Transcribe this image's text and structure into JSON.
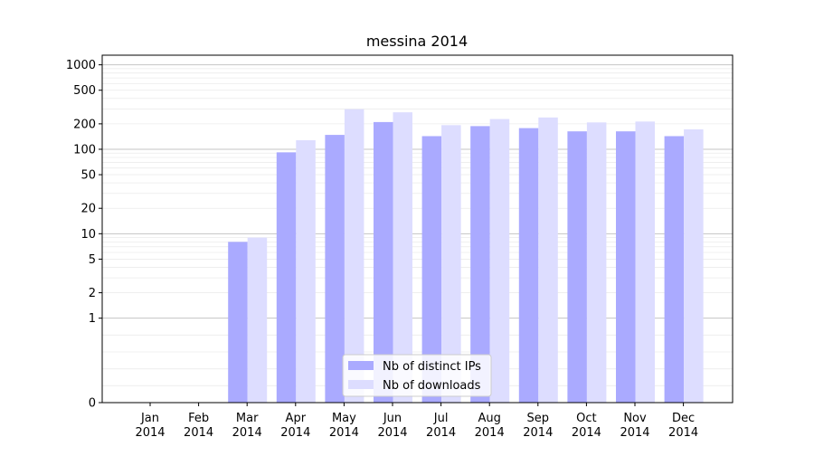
{
  "chart_data": {
    "type": "bar",
    "title": "messina 2014",
    "xlabel": "",
    "ylabel": "",
    "scale": "symlog",
    "yticks": [
      "0",
      "1",
      "2",
      "5",
      "10",
      "20",
      "50",
      "100",
      "200",
      "500",
      "1000"
    ],
    "ytick_values": [
      0,
      1,
      2,
      5,
      10,
      20,
      50,
      100,
      200,
      500,
      1000
    ],
    "ylim": [
      0,
      1300
    ],
    "grid": true,
    "legend_position": "bottom-center",
    "categories": [
      {
        "month": "Jan",
        "year": "2014"
      },
      {
        "month": "Feb",
        "year": "2014"
      },
      {
        "month": "Mar",
        "year": "2014"
      },
      {
        "month": "Apr",
        "year": "2014"
      },
      {
        "month": "May",
        "year": "2014"
      },
      {
        "month": "Jun",
        "year": "2014"
      },
      {
        "month": "Jul",
        "year": "2014"
      },
      {
        "month": "Aug",
        "year": "2014"
      },
      {
        "month": "Sep",
        "year": "2014"
      },
      {
        "month": "Oct",
        "year": "2014"
      },
      {
        "month": "Nov",
        "year": "2014"
      },
      {
        "month": "Dec",
        "year": "2014"
      }
    ],
    "series": [
      {
        "name": "Nb of distinct IPs",
        "color": "#aaaaff",
        "values": [
          0,
          0,
          8,
          92,
          148,
          210,
          143,
          188,
          178,
          163,
          163,
          143
        ]
      },
      {
        "name": "Nb of downloads",
        "color": "#ddddff",
        "values": [
          0,
          0,
          9,
          128,
          298,
          274,
          193,
          228,
          238,
          208,
          213,
          172
        ]
      }
    ]
  }
}
